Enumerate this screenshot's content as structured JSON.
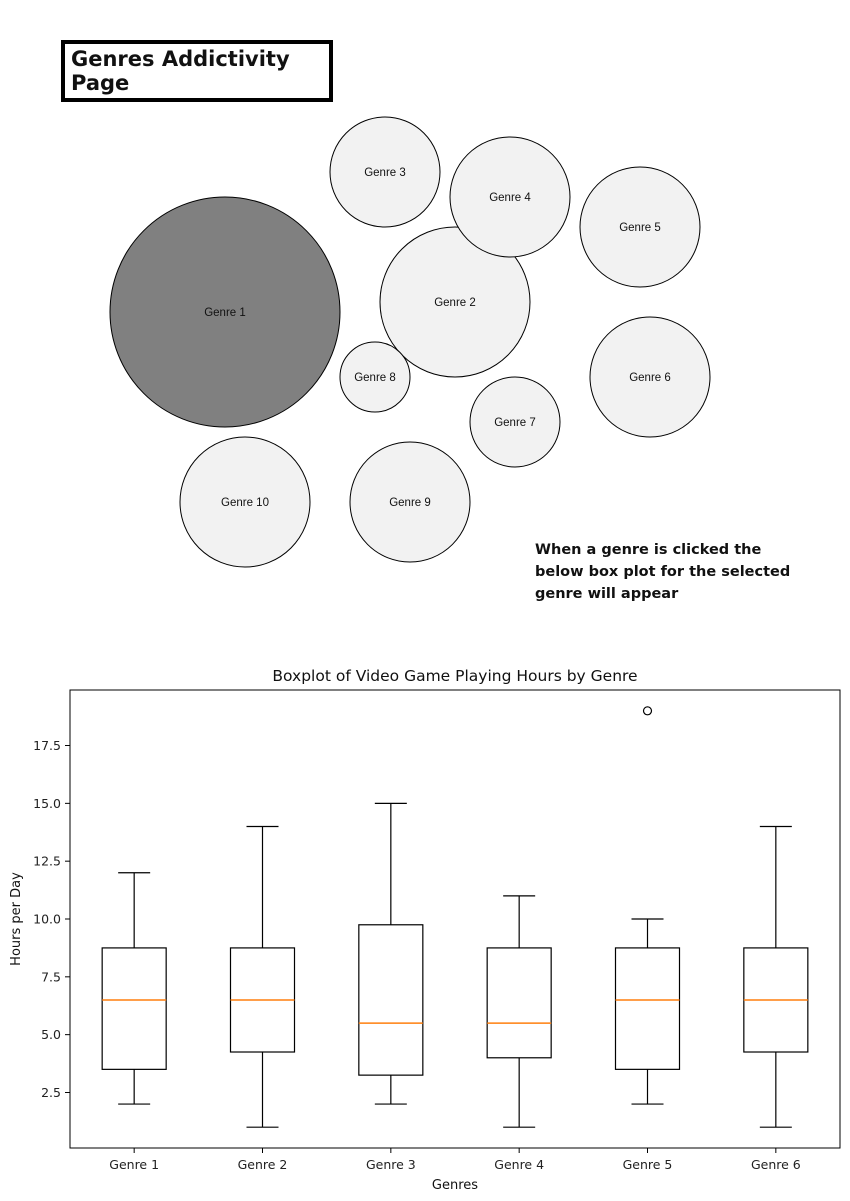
{
  "page": {
    "title": "Genres Addictivity Page",
    "instruction": "When a genre is clicked the below box plot for the selected genre will appear"
  },
  "bubbles": [
    {
      "label": "Genre 1",
      "selected": true,
      "fill": "#808080"
    },
    {
      "label": "Genre 2",
      "selected": false,
      "fill": "#f2f2f2"
    },
    {
      "label": "Genre 3",
      "selected": false,
      "fill": "#f2f2f2"
    },
    {
      "label": "Genre 4",
      "selected": false,
      "fill": "#f2f2f2"
    },
    {
      "label": "Genre 5",
      "selected": false,
      "fill": "#f2f2f2"
    },
    {
      "label": "Genre 6",
      "selected": false,
      "fill": "#f2f2f2"
    },
    {
      "label": "Genre 7",
      "selected": false,
      "fill": "#f2f2f2"
    },
    {
      "label": "Genre 8",
      "selected": false,
      "fill": "#f2f2f2"
    },
    {
      "label": "Genre 9",
      "selected": false,
      "fill": "#f2f2f2"
    },
    {
      "label": "Genre 10",
      "selected": false,
      "fill": "#f2f2f2"
    }
  ],
  "chart_data": {
    "type": "boxplot",
    "title": "Boxplot of Video Game Playing Hours by Genre",
    "xlabel": "Genres",
    "ylabel": "Hours per Day",
    "ylim": [
      0.1,
      19.9
    ],
    "yticks": [
      "2.5",
      "5.0",
      "7.5",
      "10.0",
      "12.5",
      "15.0",
      "17.5"
    ],
    "median_color": "#ff7f0e",
    "categories": [
      "Genre 1",
      "Genre 2",
      "Genre 3",
      "Genre 4",
      "Genre 5",
      "Genre 6"
    ],
    "boxes": [
      {
        "whisker_low": 2,
        "q1": 3.5,
        "median": 6.5,
        "q3": 8.75,
        "whisker_high": 12,
        "outliers": []
      },
      {
        "whisker_low": 1,
        "q1": 4.25,
        "median": 6.5,
        "q3": 8.75,
        "whisker_high": 14,
        "outliers": []
      },
      {
        "whisker_low": 2,
        "q1": 3.25,
        "median": 5.5,
        "q3": 9.75,
        "whisker_high": 15,
        "outliers": []
      },
      {
        "whisker_low": 1,
        "q1": 4,
        "median": 5.5,
        "q3": 8.75,
        "whisker_high": 11,
        "outliers": []
      },
      {
        "whisker_low": 2,
        "q1": 3.5,
        "median": 6.5,
        "q3": 8.75,
        "whisker_high": 10,
        "outliers": [
          19
        ]
      },
      {
        "whisker_low": 1,
        "q1": 4.25,
        "median": 6.5,
        "q3": 8.75,
        "whisker_high": 14,
        "outliers": []
      }
    ]
  }
}
